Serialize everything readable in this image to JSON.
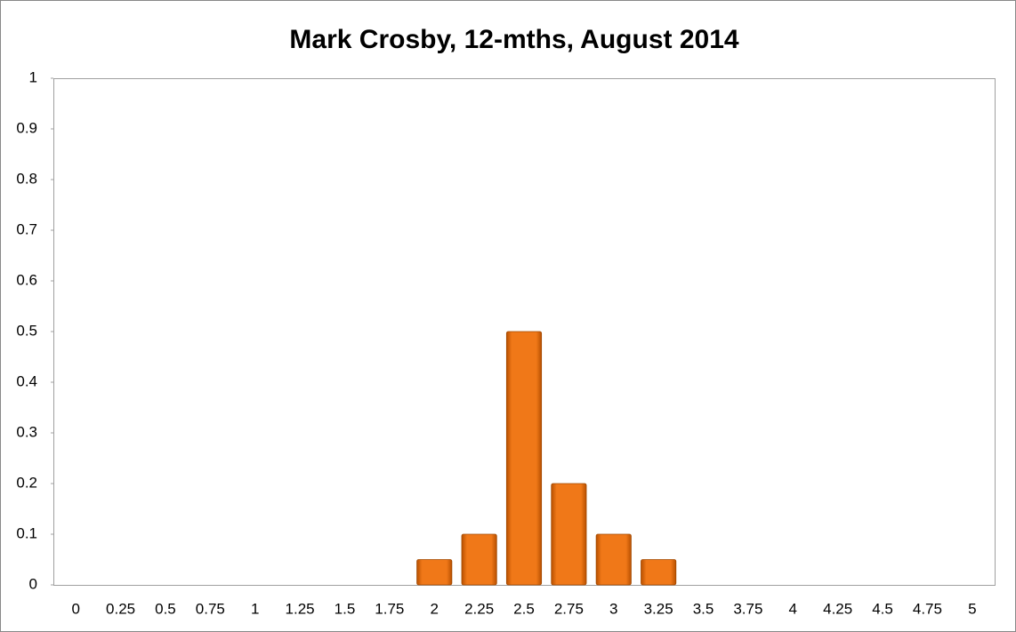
{
  "chart_data": {
    "type": "bar",
    "title": "Mark Crosby, 12-mths, August 2014",
    "categories": [
      "0",
      "0.25",
      "0.5",
      "0.75",
      "1",
      "1.25",
      "1.5",
      "1.75",
      "2",
      "2.25",
      "2.5",
      "2.75",
      "3",
      "3.25",
      "3.5",
      "3.75",
      "4",
      "4.25",
      "4.5",
      "4.75",
      "5"
    ],
    "values": [
      0,
      0,
      0,
      0,
      0,
      0,
      0,
      0,
      0.05,
      0.1,
      0.5,
      0.2,
      0.1,
      0.05,
      0,
      0,
      0,
      0,
      0,
      0,
      0
    ],
    "color": "#f07818",
    "ylim": [
      0,
      1
    ],
    "yticks": [
      0,
      0.1,
      0.2,
      0.3,
      0.4,
      0.5,
      0.6,
      0.7,
      0.8,
      0.9,
      1
    ],
    "grid": false
  }
}
